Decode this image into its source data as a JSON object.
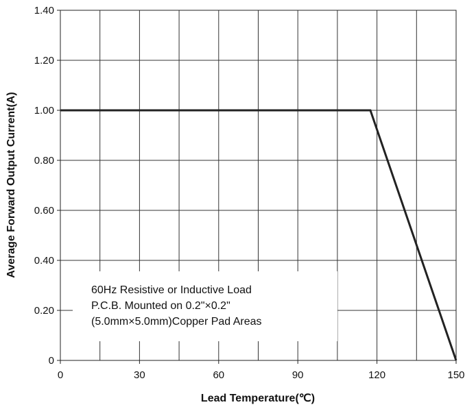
{
  "chart_data": {
    "type": "line",
    "title": "",
    "xlabel": "Lead Temperature(℃)",
    "ylabel": "Average Forward Output Current(A)",
    "xlim": [
      0,
      150
    ],
    "ylim": [
      0,
      1.4
    ],
    "x_ticks": [
      {
        "value": 0,
        "label": "0"
      },
      {
        "value": 30,
        "label": "30"
      },
      {
        "value": 60,
        "label": "60"
      },
      {
        "value": 90,
        "label": "90"
      },
      {
        "value": 120,
        "label": "120"
      },
      {
        "value": 150,
        "label": "150"
      }
    ],
    "y_ticks": [
      {
        "value": 0,
        "label": "0"
      },
      {
        "value": 0.2,
        "label": "0.20"
      },
      {
        "value": 0.4,
        "label": "0.40"
      },
      {
        "value": 0.6,
        "label": "0.60"
      },
      {
        "value": 0.8,
        "label": "0.80"
      },
      {
        "value": 1.0,
        "label": "1.00"
      },
      {
        "value": 1.2,
        "label": "1.20"
      },
      {
        "value": 1.4,
        "label": "1.40"
      }
    ],
    "grid": true,
    "x_grid_step": 15,
    "y_grid_step": 0.2,
    "series": [
      {
        "x": [
          0,
          117.5,
          150
        ],
        "y": [
          1.0,
          1.0,
          0.0
        ],
        "color": "#222222"
      }
    ],
    "annotation": {
      "lines": [
        "60Hz Resistive or Inductive Load",
        "P.C.B. Mounted on 0.2\"×0.2\"",
        "(5.0mm×5.0mm)Copper Pad Areas"
      ]
    }
  }
}
